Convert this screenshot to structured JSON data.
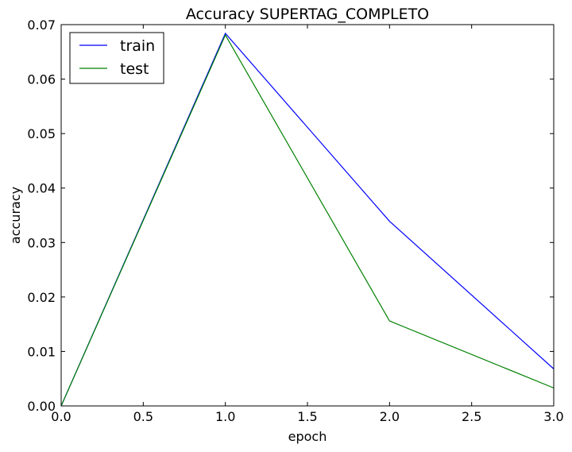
{
  "chart_data": {
    "type": "line",
    "title": "Accuracy SUPERTAG_COMPLETO",
    "xlabel": "epoch",
    "ylabel": "accuracy",
    "xlim": [
      0,
      3
    ],
    "ylim": [
      0,
      0.07
    ],
    "xticks": [
      "0.0",
      "0.5",
      "1.0",
      "1.5",
      "2.0",
      "2.5",
      "3.0"
    ],
    "yticks": [
      "0.00",
      "0.01",
      "0.02",
      "0.03",
      "0.04",
      "0.05",
      "0.06",
      "0.07"
    ],
    "grid": false,
    "legend_position": "top-left",
    "x": [
      0,
      1,
      2,
      3
    ],
    "series": [
      {
        "name": "train",
        "color": "#0000ff",
        "values": [
          0.0,
          0.0684,
          0.0339,
          0.0068
        ]
      },
      {
        "name": "test",
        "color": "#008000",
        "values": [
          0.0,
          0.0681,
          0.0156,
          0.0033
        ]
      }
    ]
  }
}
